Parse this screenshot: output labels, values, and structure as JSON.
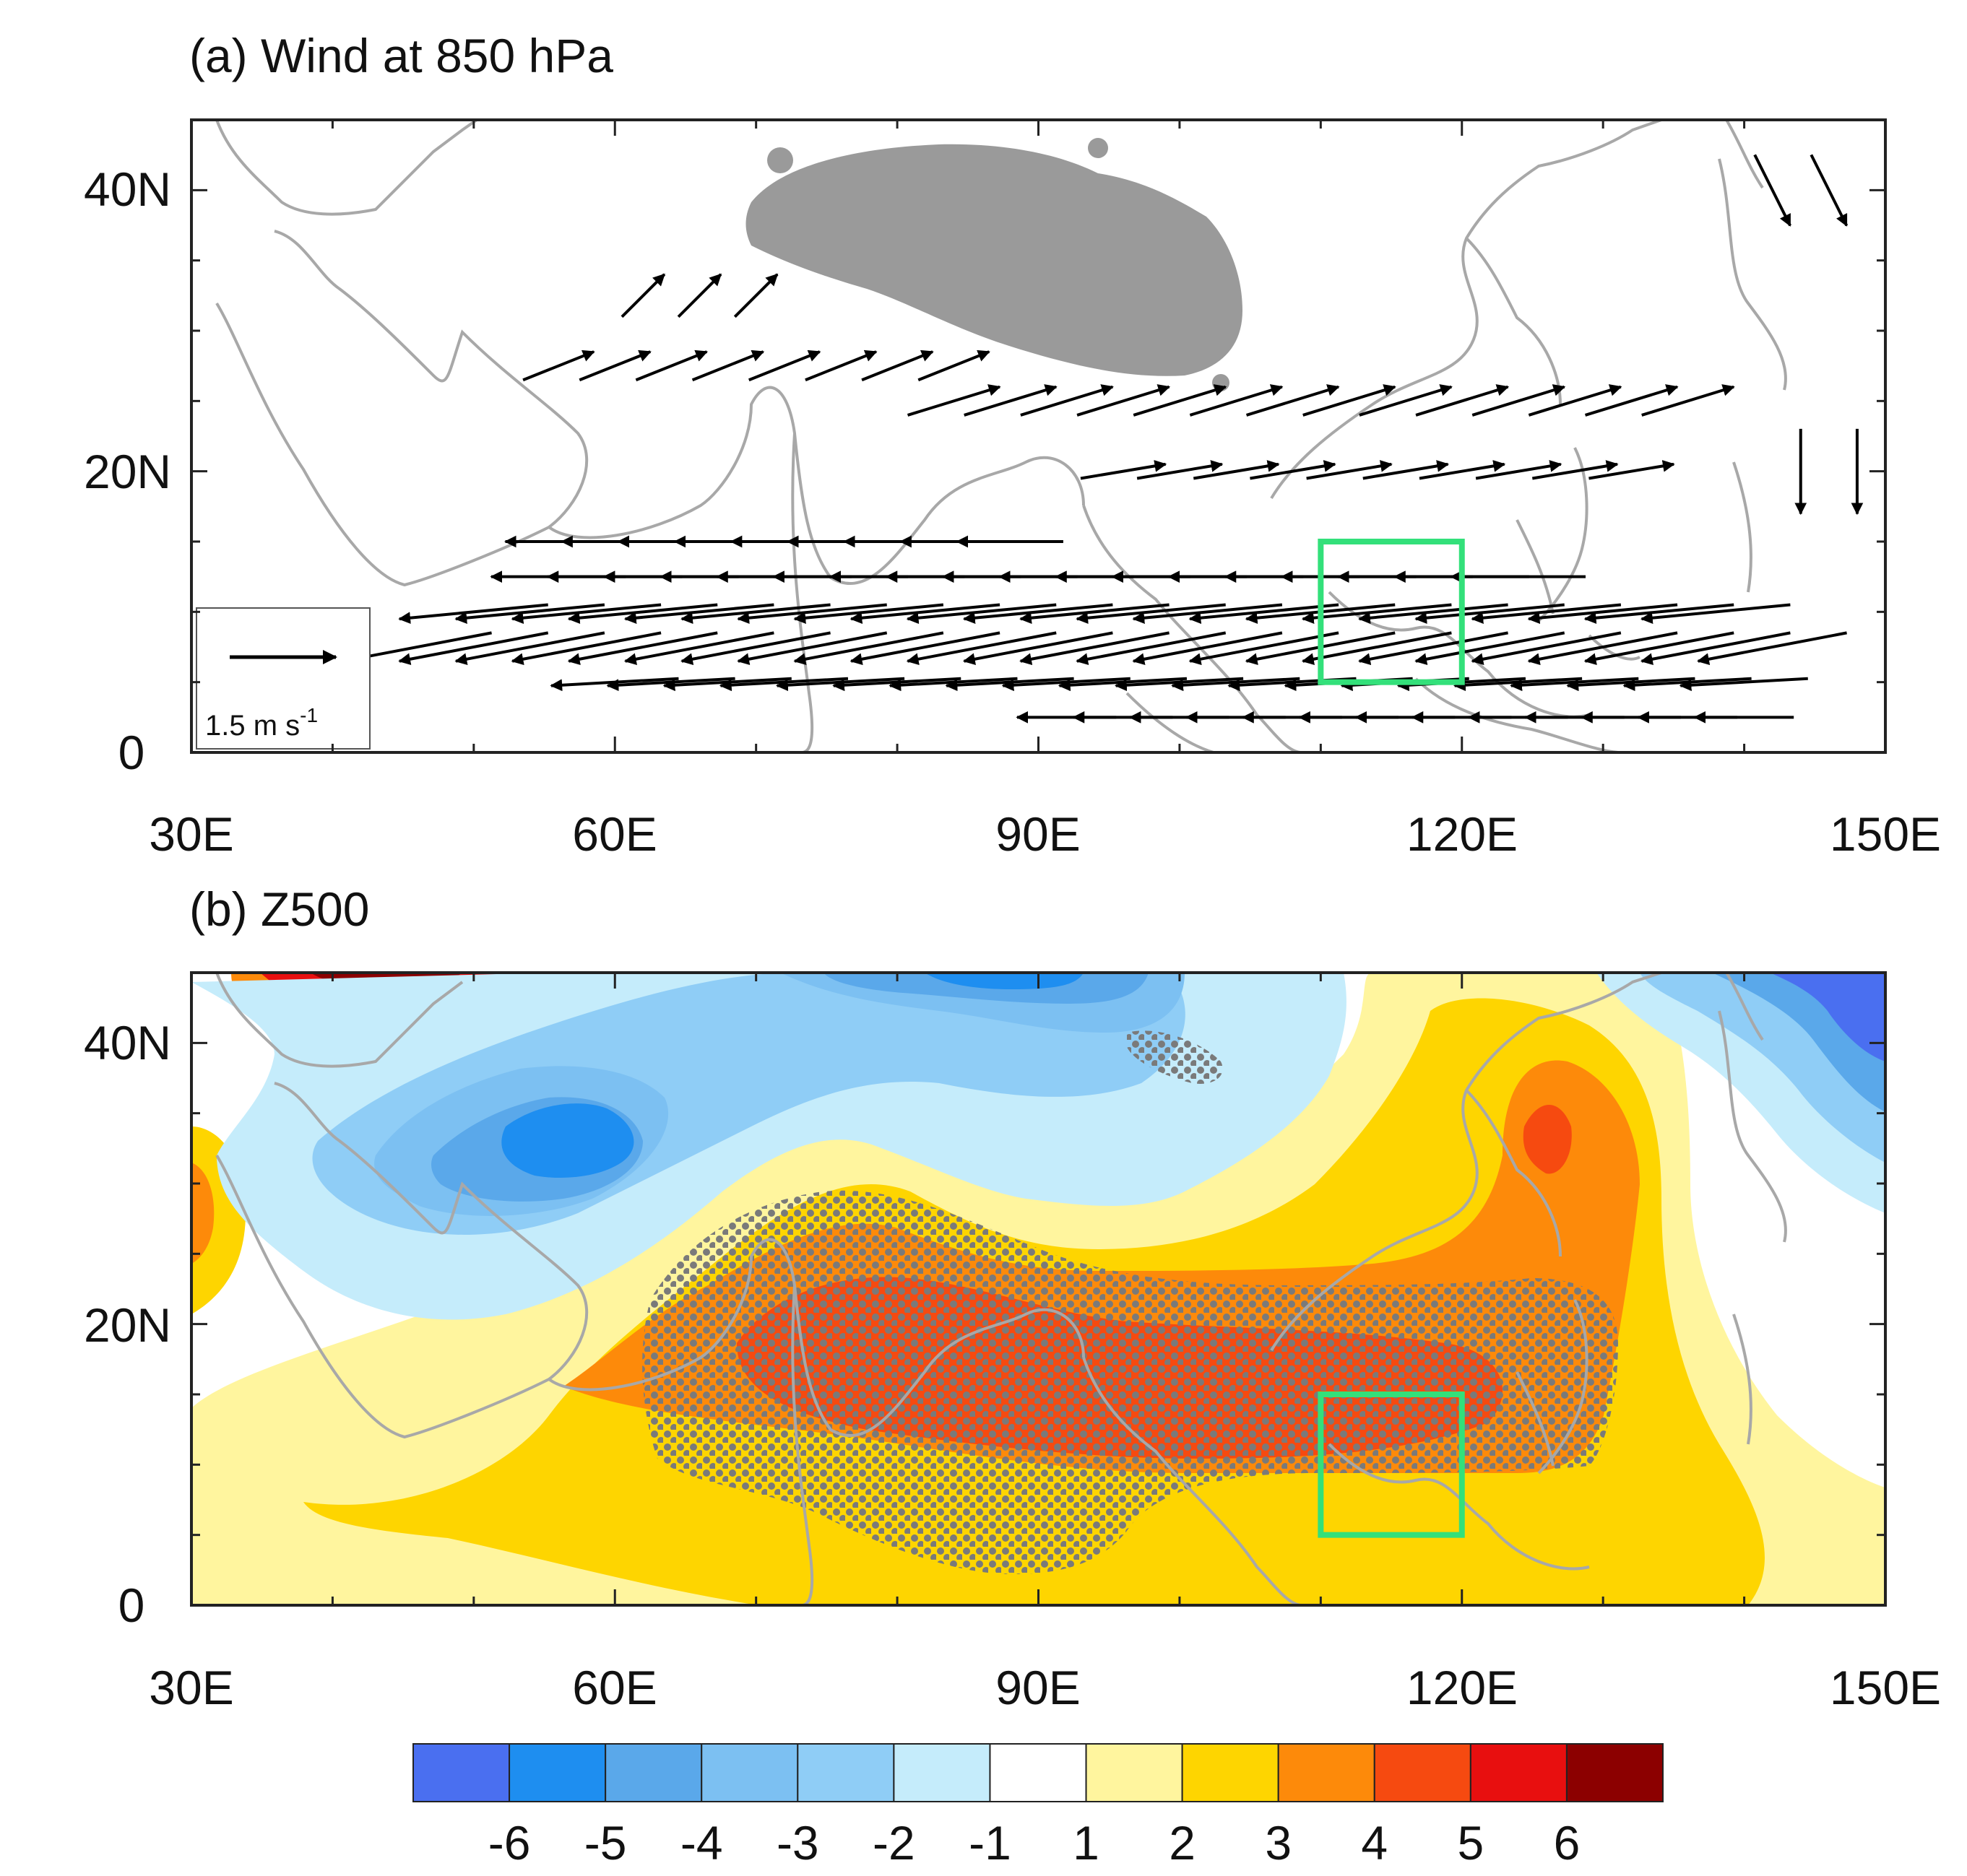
{
  "figure": {
    "panels": [
      {
        "id": "a",
        "title": "(a) Wind at 850 hPa",
        "type": "vector-map",
        "lon_range": [
          30,
          150
        ],
        "lat_range": [
          0,
          45
        ],
        "x_tick_labels": [
          "30E",
          "60E",
          "90E",
          "120E",
          "150E"
        ],
        "x_tick_values": [
          30,
          60,
          90,
          120,
          150
        ],
        "y_tick_labels": [
          "0",
          "20N",
          "40N"
        ],
        "y_tick_values": [
          0,
          20,
          40
        ],
        "reference_vector": {
          "label": "1.5 m s",
          "exponent": "-1",
          "magnitude": 1.5
        },
        "masked_region": "Tibetan Plateau (grey)",
        "box": {
          "lon": [
            110,
            120
          ],
          "lat": [
            5,
            15
          ],
          "color": "#33e07a"
        }
      },
      {
        "id": "b",
        "title": "(b) Z500",
        "type": "shaded-contour-map",
        "lon_range": [
          30,
          150
        ],
        "lat_range": [
          0,
          45
        ],
        "x_tick_labels": [
          "30E",
          "60E",
          "90E",
          "120E",
          "150E"
        ],
        "x_tick_values": [
          30,
          60,
          90,
          120,
          150
        ],
        "y_tick_labels": [
          "0",
          "20N",
          "40N"
        ],
        "y_tick_values": [
          0,
          20,
          40
        ],
        "stippling": "significant regions (grey dots)",
        "box": {
          "lon": [
            110,
            120
          ],
          "lat": [
            5,
            15
          ],
          "color": "#33e07a"
        }
      }
    ],
    "colorbar": {
      "labels": [
        "-6",
        "-5",
        "-4",
        "-3",
        "-2",
        "-1",
        "1",
        "2",
        "3",
        "4",
        "5",
        "6"
      ],
      "colors": [
        "#4a6ff0",
        "#1e8ef0",
        "#5aa8ea",
        "#7cc0f2",
        "#8fcdf6",
        "#c5ecfb",
        "#ffffff",
        "#fff59e",
        "#fed500",
        "#fd8a0a",
        "#f64a10",
        "#e80f0f",
        "#8c0000"
      ]
    }
  },
  "chart_data": [
    {
      "type": "vector-field",
      "title": "(a) Wind at 850 hPa",
      "xlabel": "",
      "ylabel": "",
      "xlim": [
        30,
        150
      ],
      "ylim": [
        0,
        45
      ],
      "x_ticks": [
        "30E",
        "60E",
        "90E",
        "120E",
        "150E"
      ],
      "y_ticks": [
        "0",
        "20N",
        "40N"
      ],
      "reference_vector_ms": 1.5,
      "vector_rows": [
        {
          "lat": 15,
          "lon_start": 56,
          "lon_end": 88,
          "u": -1.5,
          "v": 0.0
        },
        {
          "lat": 12.5,
          "lon_start": 56,
          "lon_end": 124,
          "u": -1.9,
          "v": 0.0
        },
        {
          "lat": 10,
          "lon_start": 50,
          "lon_end": 138,
          "u": -2.1,
          "v": -0.2
        },
        {
          "lat": 7.5,
          "lon_start": 46,
          "lon_end": 142,
          "u": -2.1,
          "v": -0.4
        },
        {
          "lat": 5,
          "lon_start": 60,
          "lon_end": 142,
          "u": -1.8,
          "v": -0.1
        },
        {
          "lat": 2.5,
          "lon_start": 92,
          "lon_end": 140,
          "u": -1.4,
          "v": 0.0
        },
        {
          "lat": 25,
          "lon_start": 84,
          "lon_end": 136,
          "u": 1.3,
          "v": 0.4
        },
        {
          "lat": 20,
          "lon_start": 96,
          "lon_end": 134,
          "u": 1.2,
          "v": 0.2
        },
        {
          "lat": 27.5,
          "lon_start": 56,
          "lon_end": 84,
          "u": 1.0,
          "v": 0.4
        },
        {
          "lat": 32.5,
          "lon_start": 62,
          "lon_end": 70,
          "u": 0.6,
          "v": 0.6
        },
        {
          "lat": 20,
          "lon_start": 144,
          "lon_end": 148,
          "u": 0.0,
          "v": -1.2
        },
        {
          "lat": 40,
          "lon_start": 142,
          "lon_end": 148,
          "u": 0.5,
          "v": -1.0
        }
      ]
    },
    {
      "type": "heatmap",
      "title": "(b) Z500",
      "xlabel": "",
      "ylabel": "",
      "xlim": [
        30,
        150
      ],
      "ylim": [
        0,
        45
      ],
      "x_ticks": [
        "30E",
        "60E",
        "90E",
        "120E",
        "150E"
      ],
      "y_ticks": [
        "0",
        "20N",
        "40N"
      ],
      "contour_levels": [
        -6,
        -5,
        -4,
        -3,
        -2,
        -1,
        1,
        2,
        3,
        4,
        5,
        6
      ],
      "features": [
        {
          "name": "positive anomaly core",
          "lon": 85,
          "lat": 15,
          "value": 4.5
        },
        {
          "name": "positive anomaly core",
          "lon": 118,
          "lat": 14,
          "value": 4.5
        },
        {
          "name": "positive anomaly",
          "lon": 127,
          "lat": 34,
          "value": 5.0
        },
        {
          "name": "negative anomaly core",
          "lon": 55,
          "lat": 34,
          "value": -4.5
        },
        {
          "name": "negative anomaly",
          "lon": 93,
          "lat": 43,
          "value": -4.0
        },
        {
          "name": "negative anomaly",
          "lon": 146,
          "lat": 41,
          "value": -5.0
        },
        {
          "name": "positive anomaly",
          "lon": 45,
          "lat": 44,
          "value": 6.0
        },
        {
          "name": "positive anomaly",
          "lon": 31,
          "lat": 26,
          "value": 3.0
        }
      ]
    }
  ]
}
